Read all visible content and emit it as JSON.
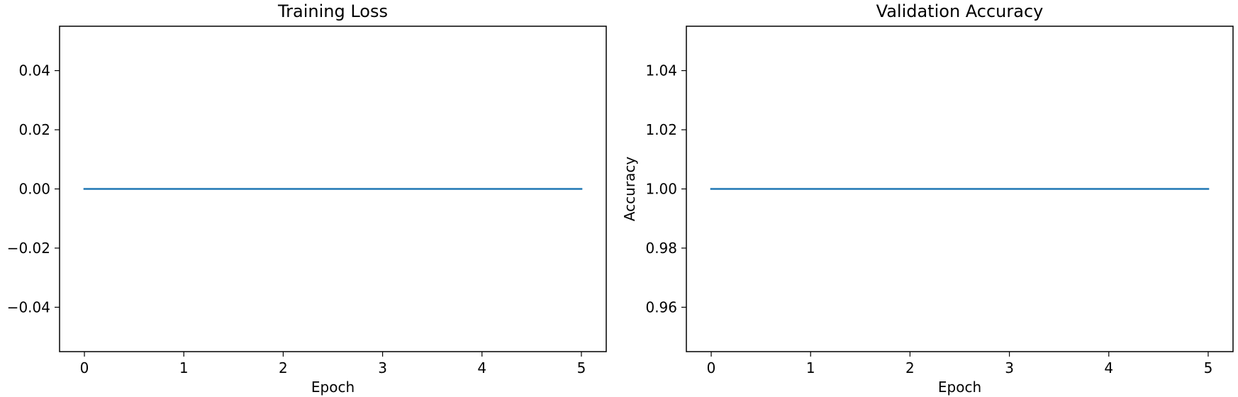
{
  "colors": {
    "series_line": "#1f77b4",
    "axes": "#000000",
    "background": "#ffffff"
  },
  "chart_data": [
    {
      "type": "line",
      "title": "Training Loss",
      "xlabel": "Epoch",
      "ylabel": "",
      "xlim": [
        -0.25,
        5.25
      ],
      "ylim": [
        -0.055,
        0.055
      ],
      "xticks": [
        0,
        1,
        2,
        3,
        4,
        5
      ],
      "xtick_labels": [
        "0",
        "1",
        "2",
        "3",
        "4",
        "5"
      ],
      "yticks": [
        -0.04,
        -0.02,
        0.0,
        0.02,
        0.04
      ],
      "ytick_labels": [
        "−0.04",
        "−0.02",
        "0.00",
        "0.02",
        "0.04"
      ],
      "grid": false,
      "series": [
        {
          "x": [
            0,
            1,
            2,
            3,
            4,
            5
          ],
          "values": [
            0,
            0,
            0,
            0,
            0,
            0
          ]
        }
      ]
    },
    {
      "type": "line",
      "title": "Validation Accuracy",
      "xlabel": "Epoch",
      "ylabel": "Accuracy",
      "xlim": [
        -0.25,
        5.25
      ],
      "ylim": [
        0.945,
        1.055
      ],
      "xticks": [
        0,
        1,
        2,
        3,
        4,
        5
      ],
      "xtick_labels": [
        "0",
        "1",
        "2",
        "3",
        "4",
        "5"
      ],
      "yticks": [
        0.96,
        0.98,
        1.0,
        1.02,
        1.04
      ],
      "ytick_labels": [
        "0.96",
        "0.98",
        "1.00",
        "1.02",
        "1.04"
      ],
      "grid": false,
      "series": [
        {
          "x": [
            0,
            1,
            2,
            3,
            4,
            5
          ],
          "values": [
            1,
            1,
            1,
            1,
            1,
            1
          ]
        }
      ]
    }
  ]
}
